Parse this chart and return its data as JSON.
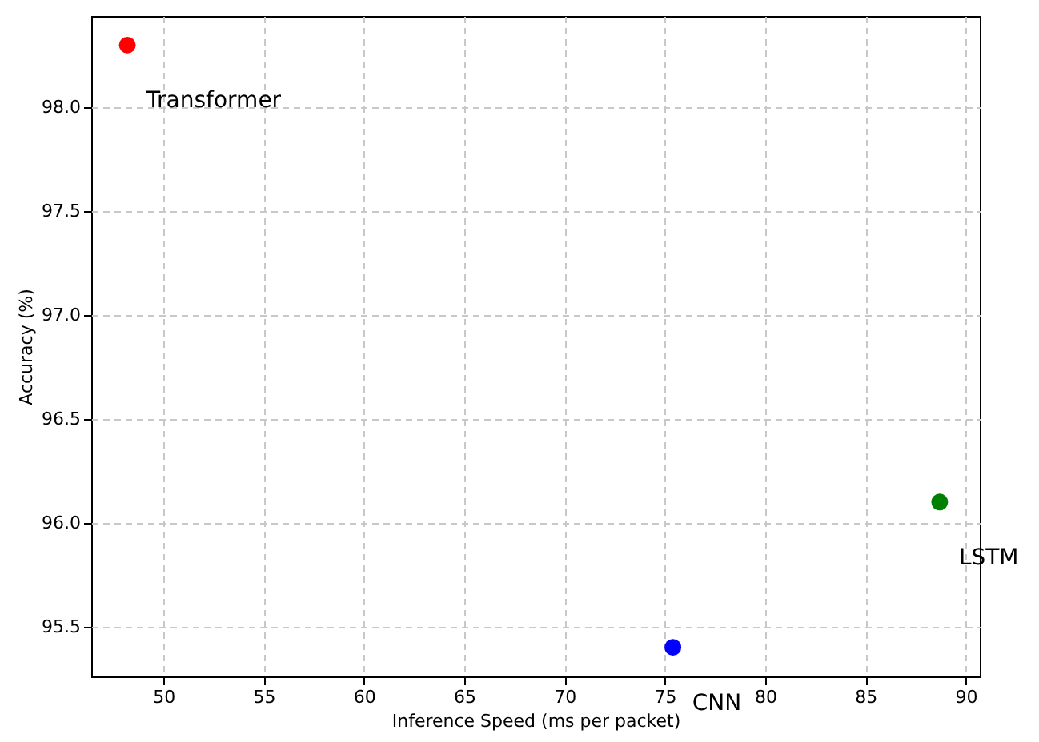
{
  "chart_data": {
    "type": "scatter",
    "xlabel": "Inference Speed (ms per packet)",
    "ylabel": "Accuracy (%)",
    "series": [
      {
        "name": "Transformer",
        "color": "#ff0000",
        "x": [
          48.2
        ],
        "values": [
          98.3
        ]
      },
      {
        "name": "LSTM",
        "color": "#008000",
        "x": [
          88.7
        ],
        "values": [
          96.1
        ]
      },
      {
        "name": "CNN",
        "color": "#0000ff",
        "x": [
          75.4
        ],
        "values": [
          95.4
        ]
      }
    ],
    "xlim": [
      46.4,
      90.7
    ],
    "ylim": [
      95.26,
      98.44
    ],
    "xticks": [
      50,
      55,
      60,
      65,
      70,
      75,
      80,
      85,
      90
    ],
    "yticks": [
      {
        "value": 95.5,
        "label": "95.5"
      },
      {
        "value": 96,
        "label": "96.0"
      },
      {
        "value": 96.5,
        "label": "96.5"
      },
      {
        "value": 97,
        "label": "97.0"
      },
      {
        "value": 97.5,
        "label": "97.5"
      },
      {
        "value": 98,
        "label": "98.0"
      }
    ],
    "grid": true,
    "marker": "circle",
    "legend": false
  }
}
